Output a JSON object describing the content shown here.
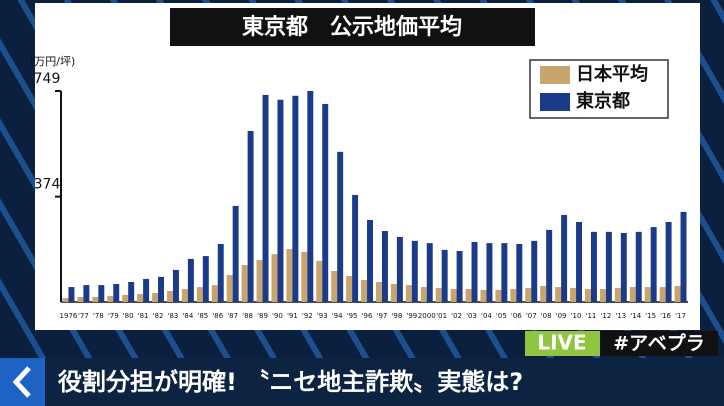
{
  "chart_data": {
    "type": "bar",
    "title": "東京都　公示地価平均",
    "y_unit": "(万円/坪)",
    "categories": [
      "1976",
      "'77",
      "'78",
      "'79",
      "'80",
      "'81",
      "'82",
      "'83",
      "'84",
      "'85",
      "'86",
      "'87",
      "'88",
      "'89",
      "'90",
      "'91",
      "'92",
      "'93",
      "'94",
      "'95",
      "'96",
      "'97",
      "'98",
      "'99",
      "2000",
      "'01",
      "'02",
      "'03",
      "'04",
      "'05",
      "'06",
      "'07",
      "'08",
      "'09",
      "'10",
      "'11",
      "'12",
      "'13",
      "'14",
      "'15",
      "'16",
      "'17"
    ],
    "series": [
      {
        "name": "日本平均",
        "color": "#c8a46e",
        "values": [
          14,
          18,
          18,
          21,
          25,
          28,
          32,
          39,
          46,
          53,
          60,
          96,
          131,
          149,
          170,
          188,
          178,
          146,
          110,
          92,
          78,
          71,
          64,
          60,
          53,
          50,
          46,
          46,
          43,
          43,
          46,
          50,
          57,
          53,
          50,
          46,
          46,
          50,
          53,
          53,
          53,
          57
        ]
      },
      {
        "name": "東京都",
        "color": "#1b3b8a",
        "values": [
          53,
          60,
          60,
          64,
          71,
          82,
          89,
          114,
          153,
          163,
          206,
          341,
          607,
          735,
          718,
          732,
          749,
          703,
          533,
          380,
          291,
          252,
          231,
          217,
          209,
          185,
          181,
          213,
          209,
          209,
          206,
          217,
          256,
          309,
          284,
          249,
          249,
          245,
          249,
          266,
          284,
          320
        ]
      }
    ],
    "ylim": [
      0,
      749
    ],
    "yticks": [
      374,
      749
    ],
    "legend": "upper-right"
  },
  "overlay": {
    "live": "LIVE",
    "hashtag": "#アベプラ",
    "caption": "役割分担が明確! 〝ニセ地主詐欺〟実態は?"
  }
}
